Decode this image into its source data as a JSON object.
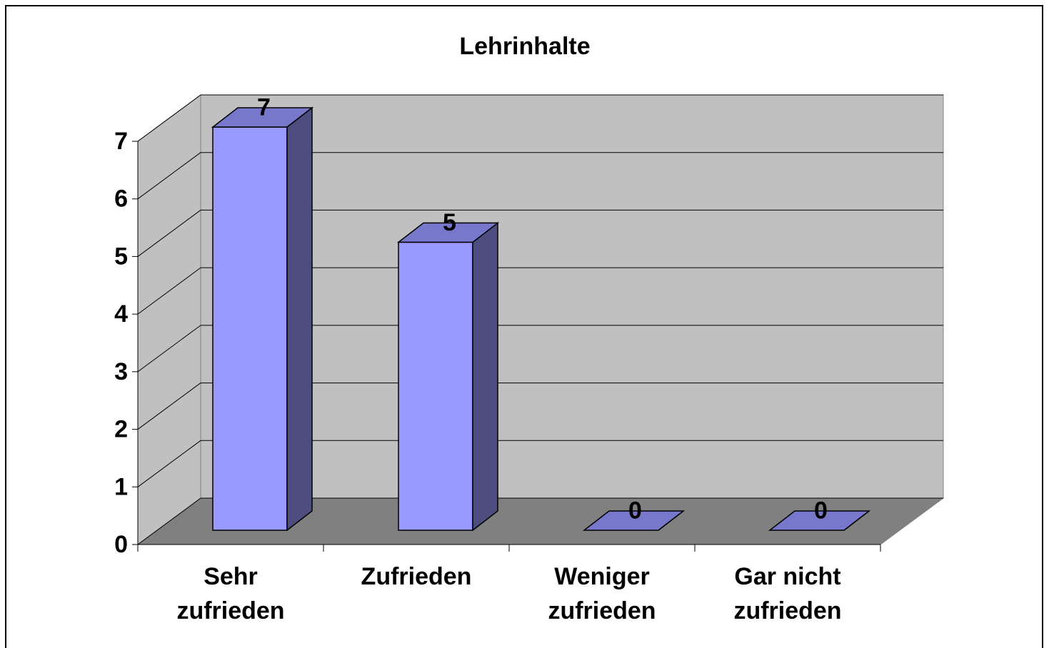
{
  "chart_data": {
    "type": "bar3d",
    "title": "Lehrinhalte",
    "categories": [
      "Sehr zufrieden",
      "Zufrieden",
      "Weniger zufrieden",
      "Gar nicht zufrieden"
    ],
    "values": [
      7,
      5,
      0,
      0
    ],
    "color": "#9999ff",
    "ylim": [
      0,
      7
    ],
    "yticks": [
      0,
      1,
      2,
      3,
      4,
      5,
      6,
      7
    ],
    "grid": true
  }
}
